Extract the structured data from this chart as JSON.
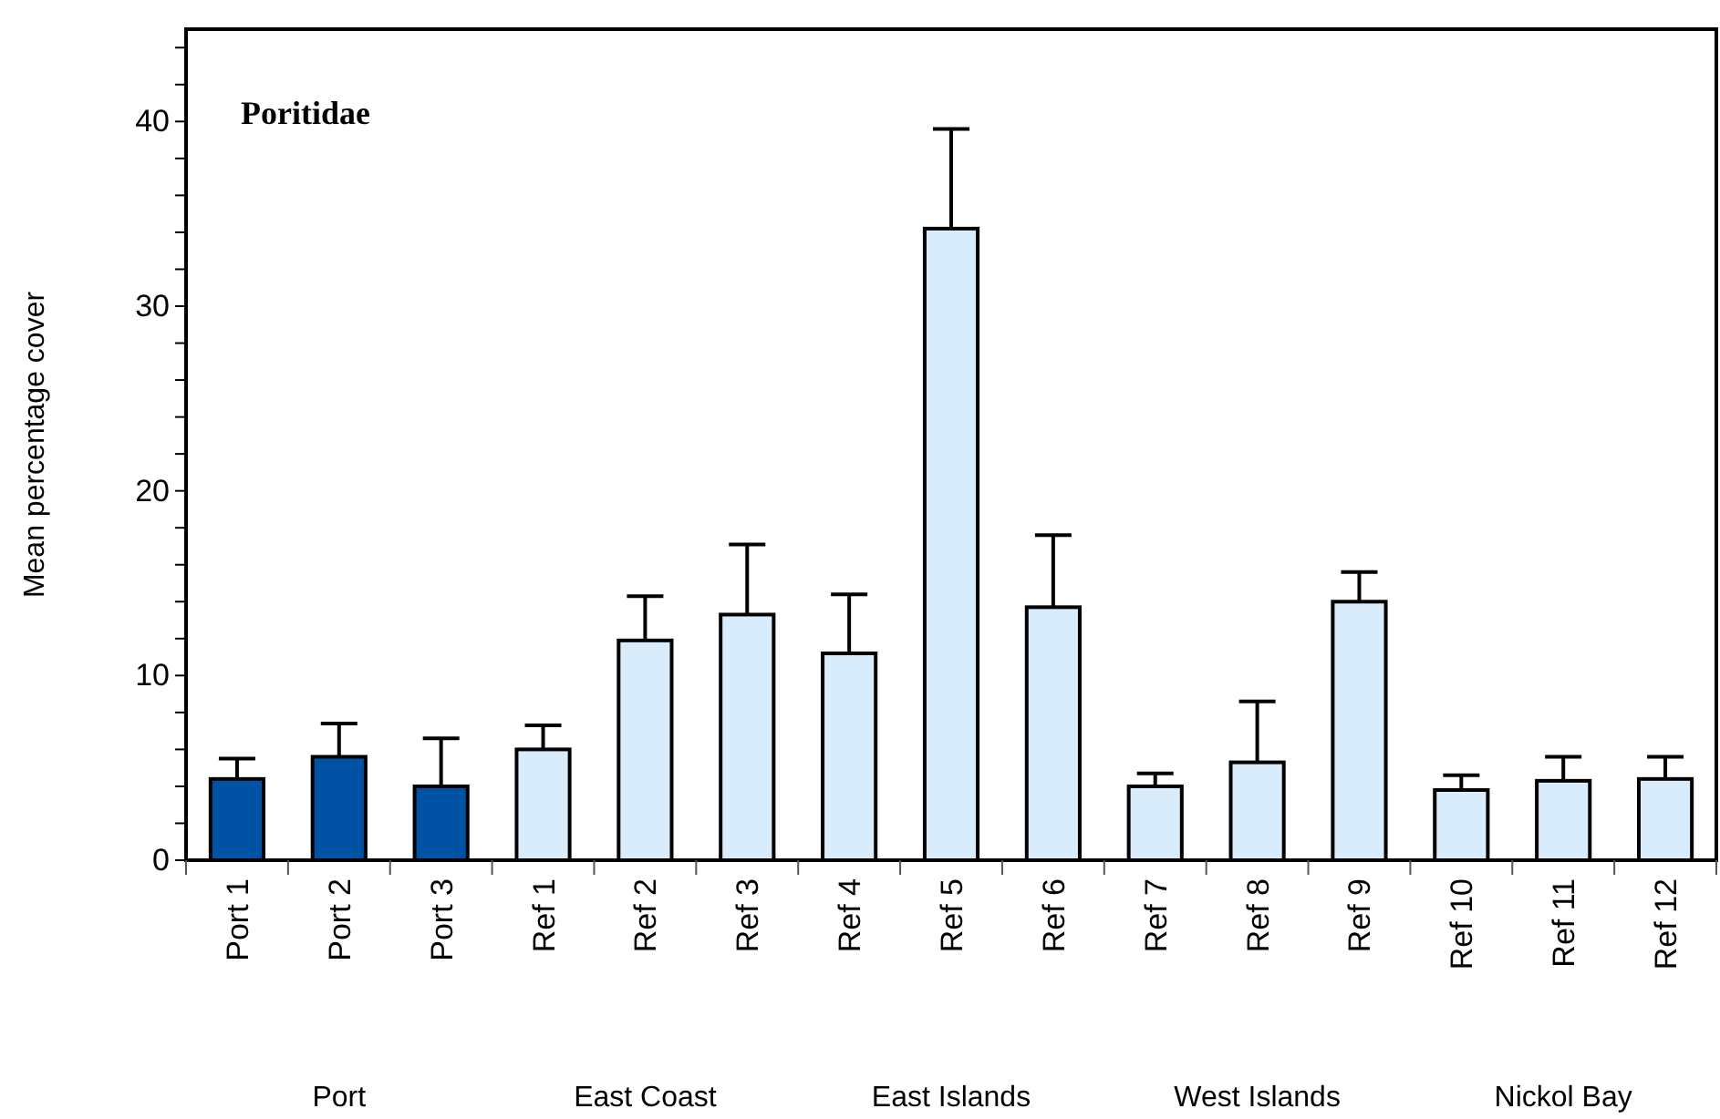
{
  "chart_data": {
    "type": "bar",
    "title": "Poritidae",
    "ylabel": "Mean percentage cover",
    "categories": [
      "Port 1",
      "Port 2",
      "Port 3",
      "Ref 1",
      "Ref 2",
      "Ref 3",
      "Ref 4",
      "Ref 5",
      "Ref 6",
      "Ref 7",
      "Ref 8",
      "Ref 9",
      "Ref 10",
      "Ref 11",
      "Ref 12"
    ],
    "values": [
      4.4,
      5.6,
      4.0,
      6.0,
      11.9,
      13.3,
      11.2,
      34.2,
      13.7,
      4.0,
      5.3,
      14.0,
      3.8,
      4.3,
      4.4
    ],
    "errors": [
      1.1,
      1.8,
      2.6,
      1.3,
      2.4,
      3.8,
      3.2,
      5.4,
      3.9,
      0.7,
      3.3,
      1.6,
      0.8,
      1.3,
      1.2
    ],
    "colors": [
      "#0052a5",
      "#0052a5",
      "#0052a5",
      "#d9ecfc",
      "#d9ecfc",
      "#d9ecfc",
      "#d9ecfc",
      "#d9ecfc",
      "#d9ecfc",
      "#d9ecfc",
      "#d9ecfc",
      "#d9ecfc",
      "#d9ecfc",
      "#d9ecfc",
      "#d9ecfc"
    ],
    "ylim": [
      0,
      45
    ],
    "yticks": [
      0,
      {
        "value": 2,
        "label": null
      },
      {
        "value": 4,
        "label": null
      },
      {
        "value": 6,
        "label": null
      },
      {
        "value": 8,
        "label": null
      },
      10,
      {
        "value": 12,
        "label": null
      },
      {
        "value": 14,
        "label": null
      },
      {
        "value": 16,
        "label": null
      },
      {
        "value": 18,
        "label": null
      },
      20,
      {
        "value": 22,
        "label": null
      },
      {
        "value": 24,
        "label": null
      },
      {
        "value": 26,
        "label": null
      },
      {
        "value": 28,
        "label": null
      },
      30,
      {
        "value": 32,
        "label": null
      },
      {
        "value": 34,
        "label": null
      },
      {
        "value": 36,
        "label": null
      },
      {
        "value": 38,
        "label": null
      },
      40,
      {
        "value": 42,
        "label": null
      },
      {
        "value": 44,
        "label": null
      }
    ],
    "grid": false,
    "annotations": [
      "Port",
      "East Coast",
      "East Islands",
      "West Islands",
      "Nickol Bay"
    ]
  }
}
